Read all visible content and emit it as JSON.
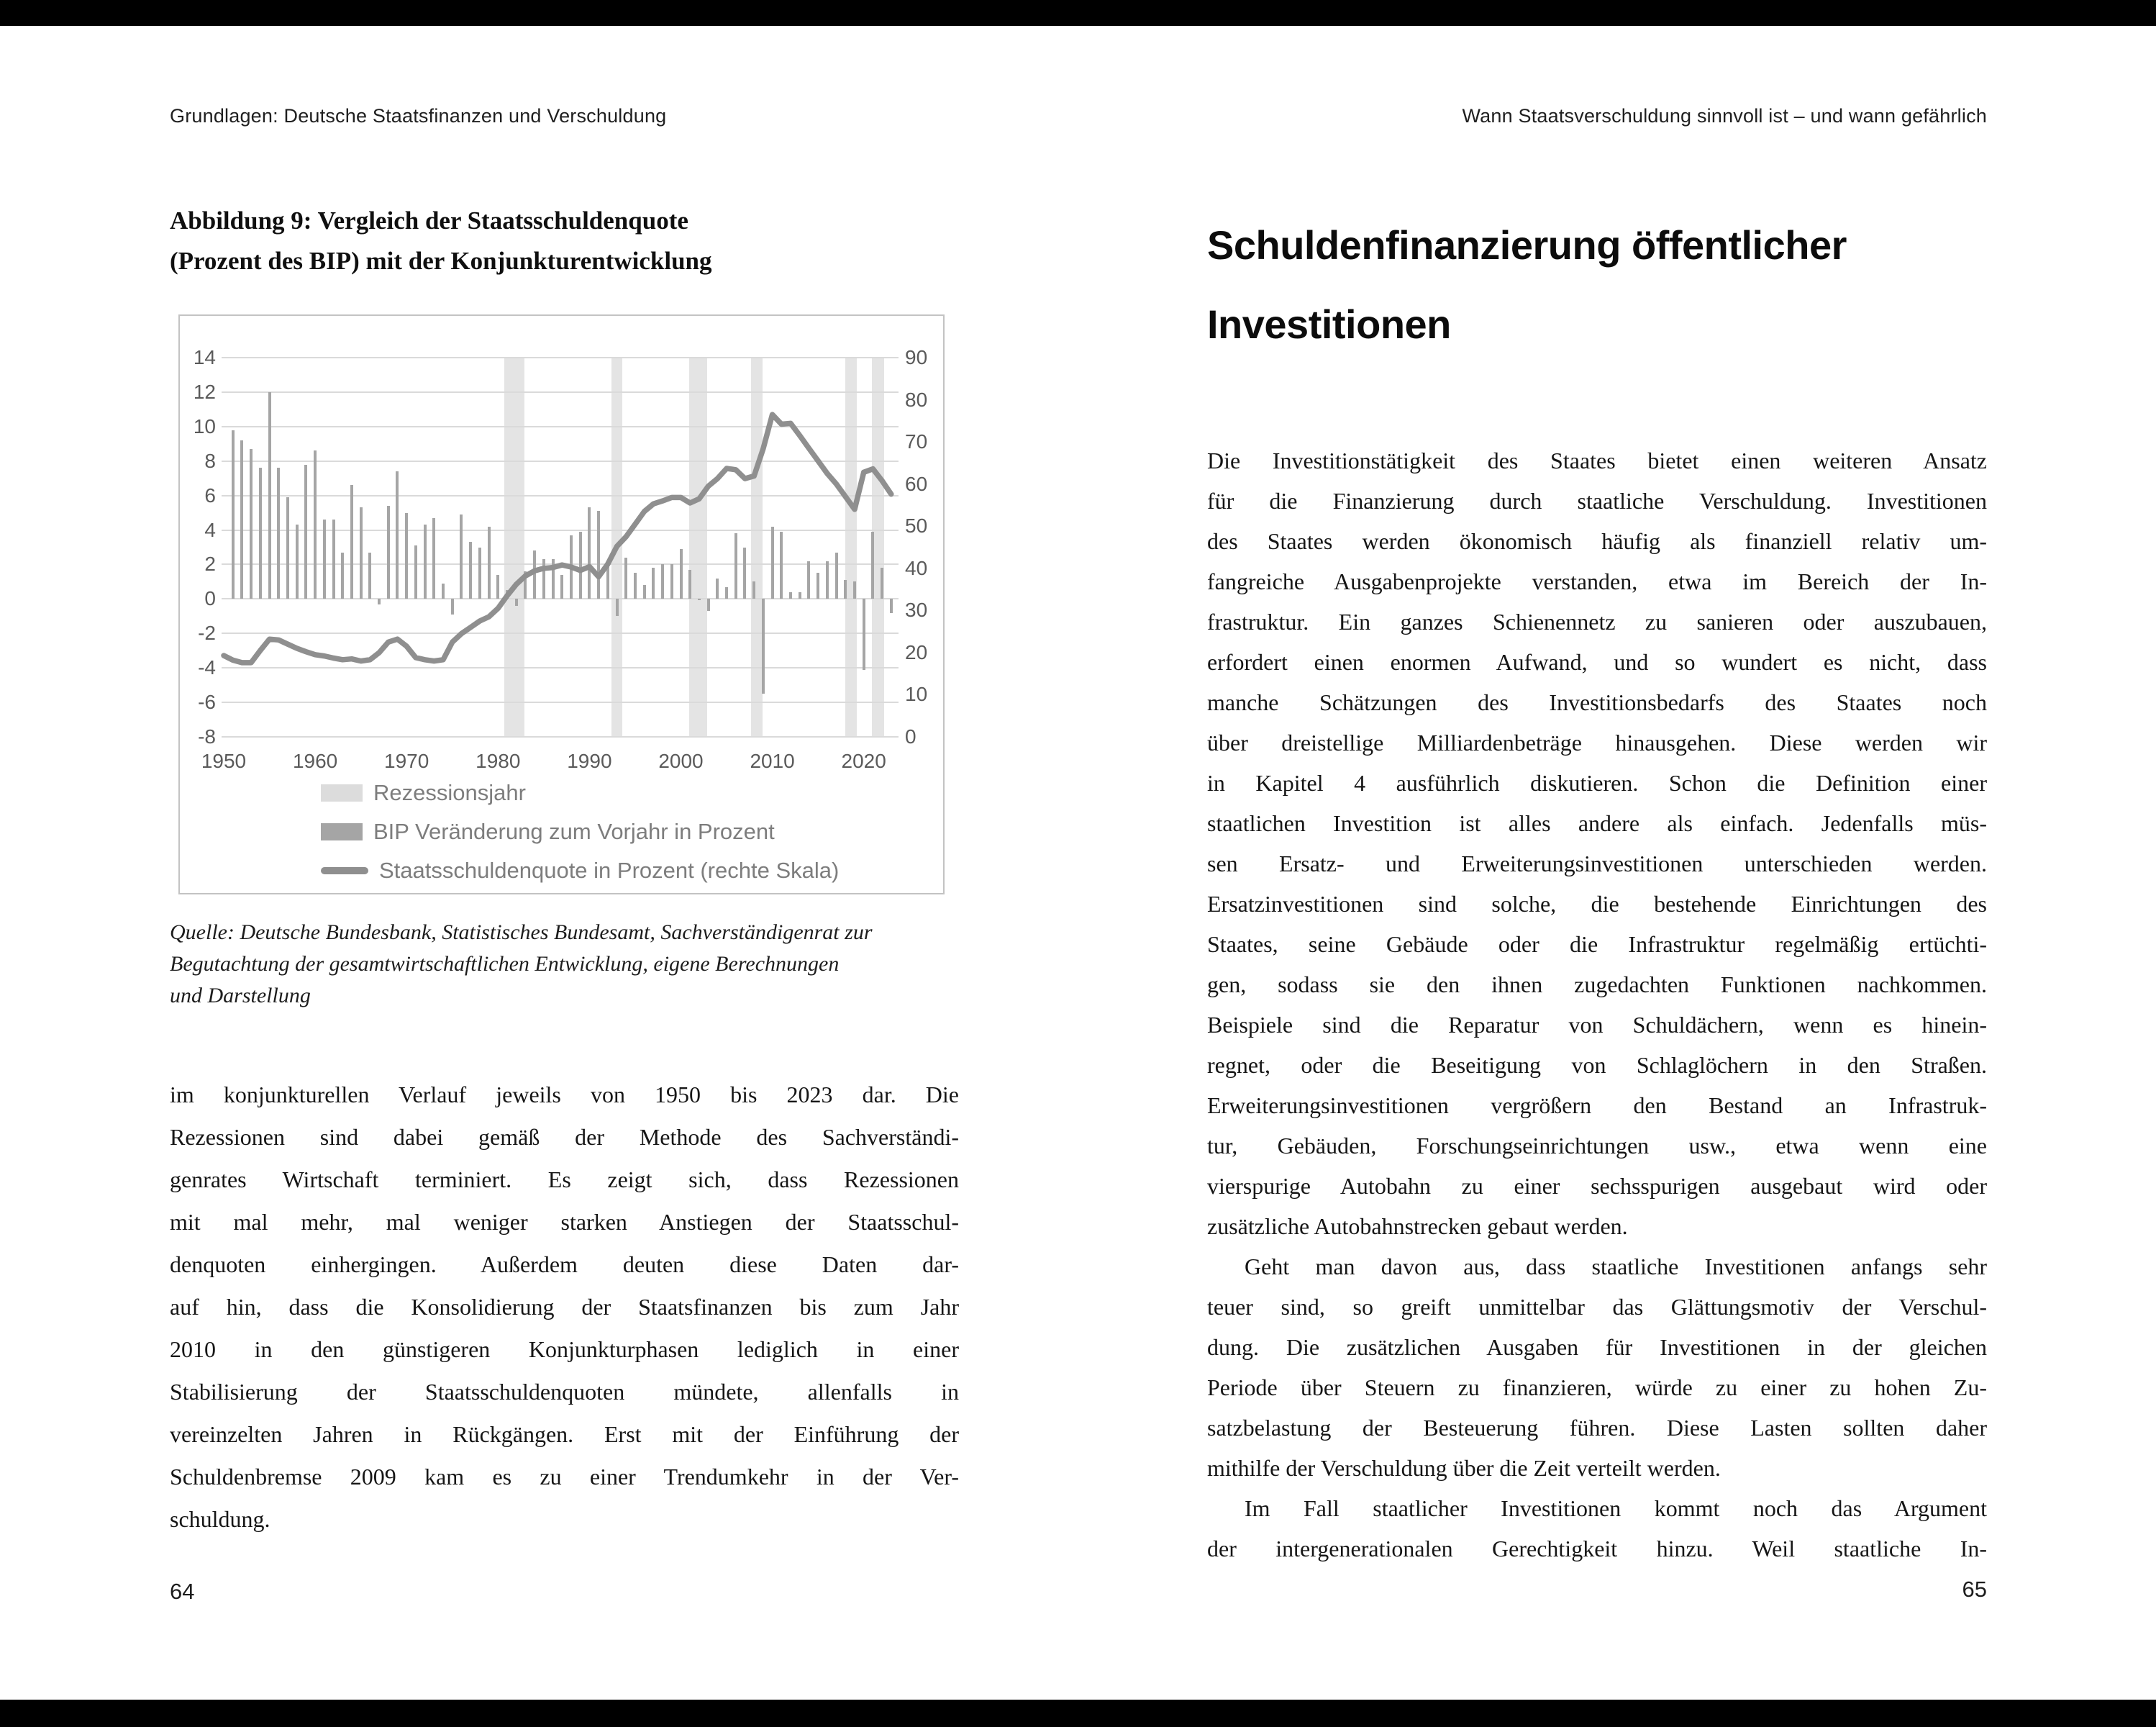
{
  "left_page": {
    "header": "Grundlagen: Deutsche Staatsfinanzen und Verschuldung",
    "page_number": "64",
    "figure_title_lines": [
      "Abbildung 9: Vergleich der Staatsschuldenquote",
      "(Prozent des BIP) mit der Konjunkturentwicklung"
    ],
    "source_lines": [
      "Quelle: Deutsche Bundesbank, Statistisches Bundesamt, Sachverständigenrat zur",
      "Begutachtung der gesamtwirtschaftlichen Entwicklung, eigene Berechnungen",
      "und Darstellung"
    ],
    "body_lines": [
      "im konjunkturellen Verlauf jeweils von 1950 bis 2023 dar. Die",
      "Rezessionen sind dabei gemäß der Methode des Sachverständi-",
      "genrates Wirtschaft terminiert. Es zeigt sich, dass Rezessionen",
      "mit mal mehr, mal weniger starken Anstiegen der Staatsschul-",
      "denquoten einhergingen. Außerdem deuten diese Daten dar-",
      "auf hin, dass die Konsolidierung der Staatsfinanzen bis zum Jahr",
      "2010 in den günstigeren Konjunkturphasen lediglich in einer",
      "Stabilisierung der Staatsschuldenquoten mündete, allenfalls in",
      "vereinzelten Jahren in Rückgängen. Erst mit der Einführung der",
      "Schuldenbremse 2009 kam es zu einer Trendumkehr in der Ver-",
      "schuldung."
    ]
  },
  "right_page": {
    "header": "Wann Staatsverschuldung sinnvoll ist – und wann gefährlich",
    "page_number": "65",
    "heading_lines": [
      "Schuldenfinanzierung öffentlicher",
      "Investitionen"
    ],
    "paragraphs": [
      {
        "indent_first": false,
        "complete": true,
        "lines": [
          "Die Investitionstätigkeit des Staates bietet einen weiteren Ansatz",
          "für die Finanzierung durch staatliche Verschuldung. Investitionen",
          "des Staates werden ökonomisch häufig als finanziell relativ um-",
          "fangreiche Ausgabenprojekte verstanden, etwa im Bereich der In-",
          "frastruktur. Ein ganzes Schienennetz zu sanieren oder auszubauen,",
          "erfordert einen enormen Aufwand, und so wundert es nicht, dass",
          "manche Schätzungen des Investitionsbedarfs des Staates noch",
          "über dreistellige Milliardenbeträge hinausgehen. Diese werden wir",
          "in Kapitel 4 ausführlich diskutieren. Schon die Definition einer",
          "staatlichen Investition ist alles andere als einfach. Jedenfalls müs-",
          "sen Ersatz- und Erweiterungsinvestitionen unterschieden werden.",
          "Ersatzinvestitionen sind solche, die bestehende Einrichtungen des",
          "Staates, seine Gebäude oder die Infrastruktur regelmäßig ertüchti-",
          "gen, sodass sie den ihnen zugedachten Funktionen nachkommen.",
          "Beispiele sind die Reparatur von Schuldächern, wenn es hinein-",
          "regnet, oder die Beseitigung von Schlaglöchern in den Straßen.",
          "Erweiterungsinvestitionen vergrößern den Bestand an Infrastruk-",
          "tur, Gebäuden, Forschungseinrichtungen usw., etwa wenn eine",
          "vierspurige Autobahn zu einer sechsspurigen ausgebaut wird oder",
          "zusätzliche Autobahnstrecken gebaut werden."
        ]
      },
      {
        "indent_first": true,
        "complete": true,
        "lines": [
          "Geht man davon aus, dass staatliche Investitionen anfangs sehr",
          "teuer sind, so greift unmittelbar das Glättungsmotiv der Verschul-",
          "dung. Die zusätzlichen Ausgaben für Investitionen in der gleichen",
          "Periode über Steuern zu finanzieren, würde zu einer zu hohen Zu-",
          "satzbelastung der Besteuerung führen. Diese Lasten sollten daher",
          "mithilfe der Verschuldung über die Zeit verteilt werden."
        ]
      },
      {
        "indent_first": true,
        "complete": false,
        "lines": [
          "Im Fall staatlicher Investitionen kommt noch das Argument",
          "der intergenerationalen Gerechtigkeit hinzu. Weil staatliche In-"
        ]
      }
    ]
  },
  "chart_data": {
    "type": "bar",
    "subtype": "combo-bar-line-with-recession-bands",
    "title": "Abbildung 9: Vergleich der Staatsschuldenquote (Prozent des BIP) mit der Konjunkturentwicklung",
    "xlabel": "",
    "ylabel_left": "BIP Veränderung zum Vorjahr in Prozent",
    "ylabel_right": "Staatsschuldenquote in Prozent (rechte Skala)",
    "grid": true,
    "legend_position": "bottom-inside",
    "left_axis": {
      "min": -8,
      "max": 14,
      "step": 2,
      "ticks": [
        14,
        12,
        10,
        8,
        6,
        4,
        2,
        0,
        -2,
        -4,
        -6,
        -8
      ]
    },
    "right_axis": {
      "min": 0,
      "max": 90,
      "step": 10,
      "ticks": [
        90,
        80,
        70,
        60,
        50,
        40,
        30,
        20,
        10,
        0
      ]
    },
    "x_ticks": [
      1950,
      1960,
      1970,
      1980,
      1990,
      2000,
      2010,
      2020
    ],
    "legend": [
      "Rezessionsjahr",
      "BIP Veränderung zum Vorjahr in Prozent",
      "Staatsschuldenquote in Prozent (rechte Skala)"
    ],
    "recession_spans": [
      [
        1980.7,
        1982.9
      ],
      [
        1992.4,
        1993.6
      ],
      [
        2000.9,
        2002.9
      ],
      [
        2007.7,
        2008.9
      ],
      [
        2018.0,
        2019.2
      ],
      [
        2020.9,
        2022.2
      ]
    ],
    "years": [
      1950,
      1951,
      1952,
      1953,
      1954,
      1955,
      1956,
      1957,
      1958,
      1959,
      1960,
      1961,
      1962,
      1963,
      1964,
      1965,
      1966,
      1967,
      1968,
      1969,
      1970,
      1971,
      1972,
      1973,
      1974,
      1975,
      1976,
      1977,
      1978,
      1979,
      1980,
      1981,
      1982,
      1983,
      1984,
      1985,
      1986,
      1987,
      1988,
      1989,
      1990,
      1991,
      1992,
      1993,
      1994,
      1995,
      1996,
      1997,
      1998,
      1999,
      2000,
      2001,
      2002,
      2003,
      2004,
      2005,
      2006,
      2007,
      2008,
      2009,
      2010,
      2011,
      2012,
      2013,
      2014,
      2015,
      2016,
      2017,
      2018,
      2019,
      2020,
      2021,
      2022,
      2023
    ],
    "series": [
      {
        "name": "BIP Veränderung zum Vorjahr in Prozent",
        "type": "bar",
        "axis": "left",
        "values": [
          null,
          9.8,
          9.2,
          8.7,
          7.6,
          12.0,
          7.6,
          5.9,
          4.3,
          7.8,
          8.6,
          4.6,
          4.6,
          2.7,
          6.6,
          5.3,
          2.7,
          -0.3,
          5.4,
          7.4,
          5.0,
          3.1,
          4.3,
          4.7,
          0.9,
          -0.9,
          4.9,
          3.3,
          3.0,
          4.2,
          1.4,
          0.5,
          -0.4,
          1.6,
          2.8,
          2.3,
          2.3,
          1.4,
          3.7,
          3.9,
          5.3,
          5.1,
          1.9,
          -1.0,
          2.4,
          1.5,
          0.8,
          1.8,
          2.0,
          2.0,
          2.9,
          1.7,
          0.0,
          -0.7,
          1.2,
          0.7,
          3.8,
          3.0,
          1.0,
          -5.5,
          4.2,
          3.9,
          0.4,
          0.4,
          2.2,
          1.5,
          2.2,
          2.7,
          1.1,
          1.0,
          -4.1,
          3.9,
          1.8,
          -0.8
        ]
      },
      {
        "name": "Staatsschuldenquote in Prozent (rechte Skala)",
        "type": "line",
        "axis": "right",
        "values": [
          19.3,
          18.2,
          17.6,
          17.6,
          20.5,
          23.2,
          23.0,
          22.0,
          21.0,
          20.2,
          19.5,
          19.2,
          18.7,
          18.3,
          18.5,
          18.0,
          18.3,
          20.0,
          22.5,
          23.2,
          21.5,
          18.8,
          18.3,
          18.0,
          18.3,
          22.5,
          24.5,
          26.0,
          27.5,
          28.5,
          30.5,
          33.5,
          36.2,
          38.2,
          39.4,
          40.0,
          40.2,
          40.8,
          40.3,
          39.5,
          40.4,
          38.0,
          41.0,
          45.2,
          47.5,
          50.5,
          53.5,
          55.3,
          56.0,
          56.8,
          56.8,
          55.5,
          56.5,
          59.5,
          61.3,
          63.7,
          63.4,
          61.3,
          61.9,
          68.4,
          76.5,
          74.2,
          74.4,
          71.5,
          68.5,
          65.5,
          62.5,
          60.0,
          57.0,
          54.0,
          62.8,
          63.6,
          60.8,
          57.6
        ]
      }
    ],
    "colors": {
      "recession_band": "#e4e4e4",
      "bar": "#a5a5a5",
      "line": "#8f8f8f",
      "grid": "#dadada",
      "axis_text": "#5a5a5a",
      "legend_text": "#7d7d7d",
      "frame": "#c3c3c3"
    }
  }
}
